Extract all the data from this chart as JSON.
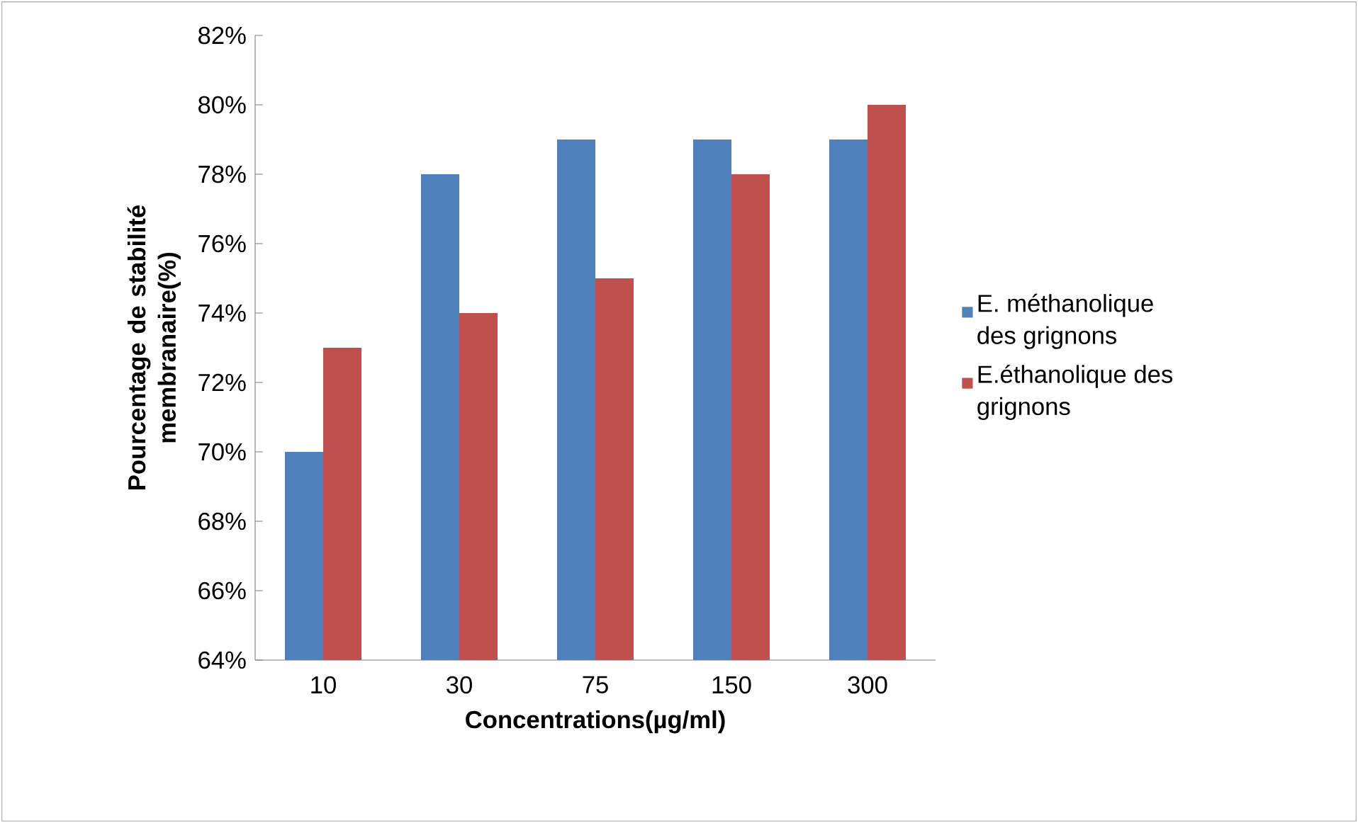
{
  "chart_data": {
    "type": "bar",
    "xlabel": "Concentrations(µg/ml)",
    "ylabel": "Pourcentage de stabilité membranaire(%)",
    "categories": [
      "10",
      "30",
      "75",
      "150",
      "300"
    ],
    "series": [
      {
        "name": "E. méthanolique des grignons",
        "color": "#4f81bd",
        "values": [
          70,
          78,
          79,
          79,
          79
        ]
      },
      {
        "name": "E.éthanolique des grignons",
        "color": "#c0504d",
        "values": [
          73,
          74,
          75,
          78,
          80
        ]
      }
    ],
    "ylim": [
      64,
      82
    ],
    "yticks": [
      {
        "value": 64,
        "label": "64%"
      },
      {
        "value": 66,
        "label": "66%"
      },
      {
        "value": 68,
        "label": "68%"
      },
      {
        "value": 70,
        "label": "70%"
      },
      {
        "value": 72,
        "label": "72%"
      },
      {
        "value": 74,
        "label": "74%"
      },
      {
        "value": 76,
        "label": "76%"
      },
      {
        "value": 78,
        "label": "78%"
      },
      {
        "value": 80,
        "label": "80%"
      },
      {
        "value": 82,
        "label": "82%"
      }
    ],
    "grid": false,
    "legend": "right"
  }
}
